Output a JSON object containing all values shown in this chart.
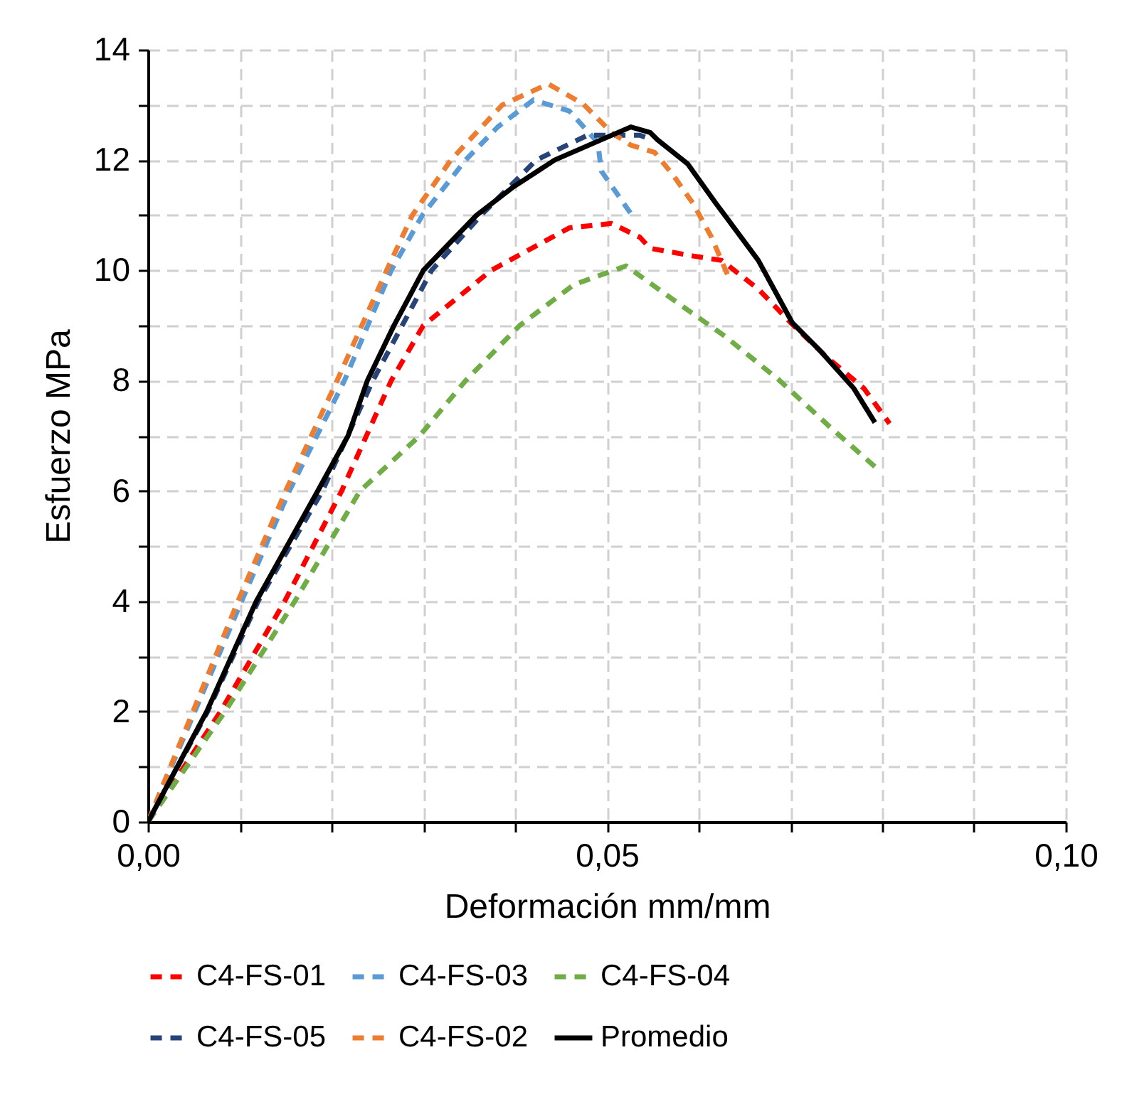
{
  "chart_data": {
    "type": "line",
    "xlabel": "Deformación mm/mm",
    "ylabel": "Esfuerzo MPa",
    "xlim": [
      0,
      0.1
    ],
    "ylim": [
      0,
      14
    ],
    "xticks": [
      {
        "value": 0,
        "label": "0,00"
      },
      {
        "value": 0.01,
        "label": null
      },
      {
        "value": 0.02,
        "label": null
      },
      {
        "value": 0.03,
        "label": null
      },
      {
        "value": 0.04,
        "label": null
      },
      {
        "value": 0.05,
        "label": "0,05"
      },
      {
        "value": 0.06,
        "label": null
      },
      {
        "value": 0.07,
        "label": null
      },
      {
        "value": 0.08,
        "label": null
      },
      {
        "value": 0.09,
        "label": null
      },
      {
        "value": 0.1,
        "label": "0,10"
      }
    ],
    "yticks": [
      0,
      {
        "value": 1,
        "label": null
      },
      2,
      {
        "value": 3,
        "label": null
      },
      4,
      {
        "value": 5,
        "label": null
      },
      6,
      {
        "value": 7,
        "label": null
      },
      8,
      {
        "value": 9,
        "label": null
      },
      10,
      {
        "value": 11,
        "label": null
      },
      12,
      {
        "value": 13,
        "label": null
      },
      14
    ],
    "grid": true,
    "legend": "bottom",
    "marker": "none",
    "series": [
      {
        "name": "C4-FS-01",
        "color": "#ff0000",
        "line_style": "dashed",
        "x": [
          0,
          0.0079,
          0.0149,
          0.0211,
          0.0265,
          0.03,
          0.0374,
          0.0459,
          0.0505,
          0.0536,
          0.0547,
          0.0594,
          0.0625,
          0.0665,
          0.0702,
          0.0738,
          0.078,
          0.0808
        ],
        "values": [
          0,
          2,
          4,
          6,
          8,
          9,
          10,
          10.77,
          10.85,
          10.6,
          10.4,
          10.26,
          10.18,
          9.66,
          9.02,
          8.45,
          7.86,
          7.22
        ]
      },
      {
        "name": "C4-FS-03",
        "color": "#5b9bd5",
        "line_style": "dashed",
        "x": [
          0,
          0.0051,
          0.0102,
          0.0154,
          0.0214,
          0.0265,
          0.0299,
          0.0346,
          0.0381,
          0.042,
          0.0459,
          0.049,
          0.0494,
          0.0526
        ],
        "values": [
          0,
          2,
          4,
          6,
          8,
          10,
          11,
          12,
          12.6,
          13.09,
          12.89,
          12.32,
          11.8,
          11.03
        ]
      },
      {
        "name": "C4-FS-04",
        "color": "#70ad47",
        "line_style": "dashed",
        "x": [
          0,
          0.0084,
          0.016,
          0.0231,
          0.0296,
          0.0346,
          0.0405,
          0.0464,
          0.0521,
          0.0578,
          0.0629,
          0.0687,
          0.0743,
          0.0792
        ],
        "values": [
          0,
          2,
          4,
          6,
          7,
          8,
          9,
          9.74,
          10.08,
          9.4,
          8.8,
          8.02,
          7.16,
          6.44
        ]
      },
      {
        "name": "C4-FS-05",
        "color": "#264478",
        "line_style": "dashed",
        "x": [
          0,
          0.0065,
          0.012,
          0.019,
          0.0245,
          0.0309,
          0.0363,
          0.0423,
          0.0479,
          0.0536,
          0.0544
        ],
        "values": [
          0,
          2,
          4,
          6,
          8,
          10,
          11,
          12,
          12.45,
          12.45,
          12.4
        ]
      },
      {
        "name": "C4-FS-02",
        "color": "#ed7d31",
        "line_style": "dashed",
        "x": [
          0,
          0.0049,
          0.0098,
          0.015,
          0.0206,
          0.026,
          0.0288,
          0.033,
          0.0386,
          0.0436,
          0.0474,
          0.0505,
          0.0526,
          0.0552,
          0.0572,
          0.0594,
          0.0614,
          0.0634
        ],
        "values": [
          0,
          2,
          4,
          6,
          8,
          10,
          11,
          12,
          13,
          13.38,
          13.02,
          12.5,
          12.27,
          12.14,
          11.73,
          11.21,
          10.6,
          9.82
        ]
      },
      {
        "name": "Promedio",
        "color": "#000000",
        "line_style": "solid",
        "x": [
          0,
          0.0064,
          0.0118,
          0.0185,
          0.0218,
          0.0239,
          0.0268,
          0.03,
          0.0358,
          0.0397,
          0.0443,
          0.0526,
          0.0547,
          0.0555,
          0.0588,
          0.0619,
          0.0665,
          0.0702,
          0.0733,
          0.0769,
          0.0792
        ],
        "values": [
          0,
          2,
          4,
          6,
          7,
          8,
          9,
          10,
          11,
          11.5,
          12,
          12.6,
          12.5,
          12.37,
          11.93,
          11.21,
          10.18,
          9.05,
          8.53,
          7.86,
          7.24
        ]
      }
    ]
  }
}
